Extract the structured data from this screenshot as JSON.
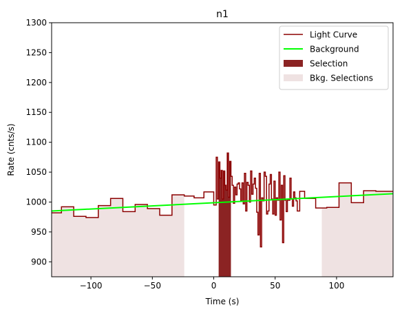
{
  "chart_data": {
    "type": "line",
    "title": "n1",
    "xlabel": "Time (s)",
    "ylabel": "Rate (cnts/s)",
    "xlim": [
      -132,
      146
    ],
    "ylim": [
      875,
      1300
    ],
    "x_ticks": [
      -100,
      -50,
      0,
      50,
      100
    ],
    "x_tick_labels": [
      "−100",
      "−50",
      "0",
      "50",
      "100"
    ],
    "y_ticks": [
      900,
      950,
      1000,
      1050,
      1100,
      1150,
      1200,
      1250,
      1300
    ],
    "y_tick_labels": [
      "900",
      "950",
      "1000",
      "1050",
      "1100",
      "1150",
      "1200",
      "1250",
      "1300"
    ],
    "grid": false,
    "legend_position": "top-right",
    "legend": [
      {
        "label": "Light Curve",
        "kind": "line",
        "color": "#8b0000"
      },
      {
        "label": "Background",
        "kind": "line",
        "color": "#00ff00"
      },
      {
        "label": "Selection",
        "kind": "patch",
        "color": "#8b2323"
      },
      {
        "label": "Bkg. Selections",
        "kind": "patch",
        "color": "#efe2e2"
      }
    ],
    "series": [
      {
        "name": "Light Curve",
        "style": "step",
        "color": "#8b0000",
        "x": [
          -132,
          -124,
          -114,
          -104,
          -94,
          -84,
          -74,
          -64,
          -54,
          -44,
          -34,
          -24,
          -16,
          -8,
          0,
          2,
          3,
          4,
          5,
          6,
          7,
          8,
          9,
          10,
          11,
          12,
          13,
          14,
          15,
          16,
          17,
          18,
          19,
          20,
          21,
          22,
          23,
          24,
          25,
          26,
          27,
          28,
          29,
          30,
          31,
          32,
          33,
          34,
          35,
          36,
          37,
          38,
          39,
          40,
          41,
          42,
          43,
          44,
          45,
          46,
          47,
          48,
          49,
          50,
          51,
          52,
          53,
          54,
          55,
          56,
          57,
          58,
          59,
          60,
          61,
          62,
          63,
          64,
          65,
          66,
          67,
          68,
          70,
          74,
          83,
          92,
          102,
          112,
          122,
          132,
          146
        ],
        "y": [
          982,
          992,
          976,
          974,
          994,
          1006,
          984,
          996,
          989,
          978,
          1012,
          1010,
          1007,
          1017,
          995,
          1075,
          1005,
          1067,
          1040,
          1053,
          1005,
          1052,
          1028,
          1020,
          1082,
          1008,
          1068,
          1043,
          1028,
          998,
          1025,
          1012,
          1030,
          1032,
          1022,
          1002,
          1032,
          997,
          1048,
          985,
          1033,
          1028,
          1000,
          1052,
          1013,
          1030,
          1040,
          1023,
          983,
          945,
          1048,
          925,
          1007,
          1002,
          1050,
          1043,
          980,
          985,
          1030,
          1046,
          1005,
          980,
          1035,
          978,
          1007,
          1003,
          1050,
          970,
          1028,
          932,
          1044,
          1003,
          984,
          1003,
          1003,
          1040,
          1005,
          993,
          1017,
          1007,
          1002,
          985,
          1018,
          1006,
          990,
          991,
          1032,
          999,
          1019,
          1018,
          1018
        ]
      },
      {
        "name": "Background",
        "style": "line",
        "color": "#00ff00",
        "x": [
          -132,
          146
        ],
        "y": [
          985,
          1014
        ]
      }
    ],
    "spans": [
      {
        "name": "Selection",
        "x0": 4,
        "x1": 14,
        "color": "#8b2323"
      },
      {
        "name": "Bkg. Selections",
        "x0": -132,
        "x1": -24,
        "color": "#efe2e2"
      },
      {
        "name": "Bkg. Selections",
        "x0": 88,
        "x1": 146,
        "color": "#efe2e2"
      }
    ]
  }
}
